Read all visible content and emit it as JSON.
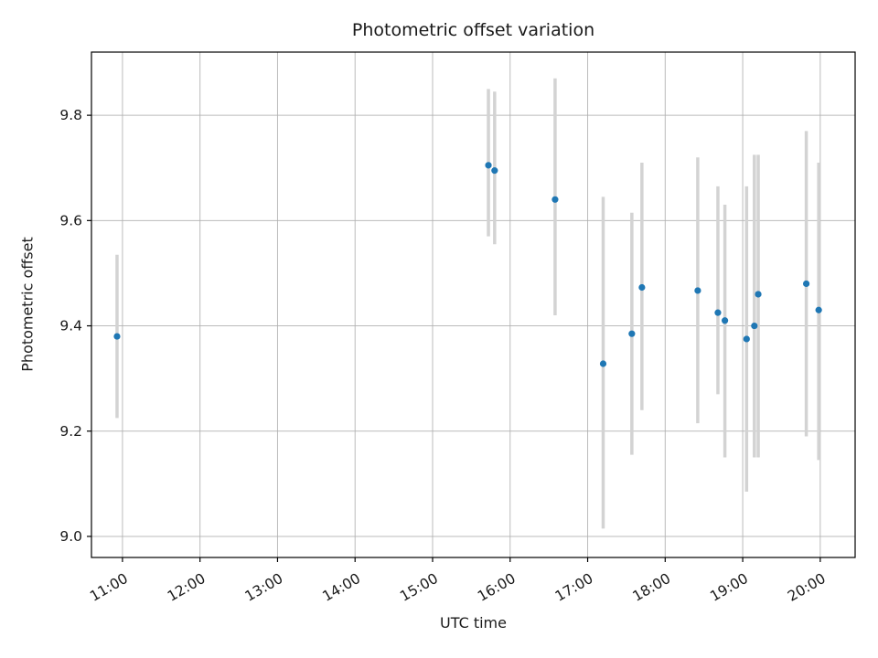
{
  "chart_data": {
    "type": "scatter",
    "title": "Photometric offset variation",
    "xlabel": "UTC time",
    "ylabel": "Photometric offset",
    "grid": true,
    "legend": "none",
    "xlim_hours": [
      10.6,
      20.45
    ],
    "ylim": [
      8.96,
      9.92
    ],
    "x_ticks": [
      {
        "hour": 11,
        "label": "11:00"
      },
      {
        "hour": 12,
        "label": "12:00"
      },
      {
        "hour": 13,
        "label": "13:00"
      },
      {
        "hour": 14,
        "label": "14:00"
      },
      {
        "hour": 15,
        "label": "15:00"
      },
      {
        "hour": 16,
        "label": "16:00"
      },
      {
        "hour": 17,
        "label": "17:00"
      },
      {
        "hour": 18,
        "label": "18:00"
      },
      {
        "hour": 19,
        "label": "19:00"
      },
      {
        "hour": 20,
        "label": "20:00"
      }
    ],
    "y_ticks": [
      "9.0",
      "9.2",
      "9.4",
      "9.6",
      "9.8"
    ],
    "y_tick_values": [
      9.0,
      9.2,
      9.4,
      9.6,
      9.8
    ],
    "colors": {
      "point": "#1f77b4",
      "error_bar": "#d3d3d3",
      "grid": "#b0b0b0",
      "axis": "#000000"
    },
    "points": [
      {
        "t": 10.93,
        "y": 9.38,
        "lo": 9.225,
        "hi": 9.535
      },
      {
        "t": 15.72,
        "y": 9.705,
        "lo": 9.57,
        "hi": 9.85
      },
      {
        "t": 15.8,
        "y": 9.695,
        "lo": 9.555,
        "hi": 9.845
      },
      {
        "t": 16.58,
        "y": 9.64,
        "lo": 9.42,
        "hi": 9.87
      },
      {
        "t": 17.2,
        "y": 9.328,
        "lo": 9.015,
        "hi": 9.645
      },
      {
        "t": 17.57,
        "y": 9.385,
        "lo": 9.155,
        "hi": 9.615
      },
      {
        "t": 17.7,
        "y": 9.473,
        "lo": 9.24,
        "hi": 9.71
      },
      {
        "t": 18.42,
        "y": 9.467,
        "lo": 9.215,
        "hi": 9.72
      },
      {
        "t": 18.68,
        "y": 9.425,
        "lo": 9.27,
        "hi": 9.665
      },
      {
        "t": 18.77,
        "y": 9.41,
        "lo": 9.15,
        "hi": 9.63
      },
      {
        "t": 19.05,
        "y": 9.375,
        "lo": 9.085,
        "hi": 9.665
      },
      {
        "t": 19.15,
        "y": 9.4,
        "lo": 9.15,
        "hi": 9.725
      },
      {
        "t": 19.2,
        "y": 9.46,
        "lo": 9.15,
        "hi": 9.725
      },
      {
        "t": 19.82,
        "y": 9.48,
        "lo": 9.19,
        "hi": 9.77
      },
      {
        "t": 19.98,
        "y": 9.43,
        "lo": 9.145,
        "hi": 9.71
      }
    ]
  }
}
